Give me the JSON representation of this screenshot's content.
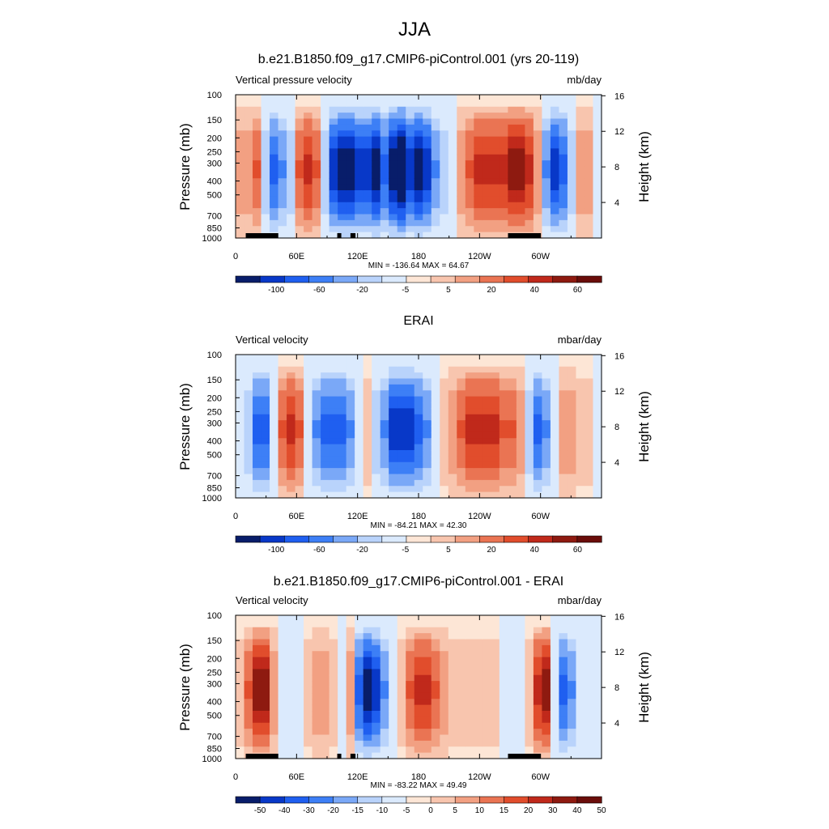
{
  "figure": {
    "season": "JJA"
  },
  "colors": {
    "div12": [
      "#081d6a",
      "#0838c8",
      "#1f5ff0",
      "#3d7ff6",
      "#7aa8f7",
      "#b9d3fb",
      "#dbeafd",
      "#fde6d6",
      "#f8c5ae",
      "#f2a082",
      "#ea7453",
      "#e14d2c",
      "#c0291b",
      "#8e1a10",
      "#6a0d0a"
    ],
    "land": "#000000"
  },
  "chart_data": [
    {
      "type": "heatmap",
      "title": "b.e21.B1850.f09_g17.CMIP6-piControl.001 (yrs 20-119)",
      "left_label": "Vertical pressure velocity",
      "right_label": "mb/day",
      "ylabel": "Pressure (mb)",
      "ylabel_right": "Height (km)",
      "x_ticks": [
        "0",
        "60E",
        "120E",
        "180",
        "120W",
        "60W"
      ],
      "y_ticks": [
        "100",
        "150",
        "200",
        "250",
        "300",
        "400",
        "500",
        "700",
        "850",
        "1000"
      ],
      "y_right_ticks": [
        "16",
        "12",
        "8",
        "4"
      ],
      "stats": "MIN = -136.64  MAX =  64.67",
      "min": -136.64,
      "max": 64.67,
      "colorbar_labels": [
        "-100",
        "-60",
        "-20",
        "-5",
        "5",
        "20",
        "40",
        "60"
      ],
      "profile": [
        2,
        2,
        3,
        -2,
        -4,
        -3,
        -2,
        3,
        4,
        3,
        -2,
        -5,
        -6,
        -6,
        -5,
        -5,
        -6,
        -4,
        -6,
        -7,
        -5,
        -6,
        -5,
        -3,
        -2,
        -1,
        2,
        3,
        4,
        4,
        4,
        4,
        5,
        5,
        4,
        2,
        -3,
        -5,
        -4,
        -2,
        2,
        2,
        -1
      ],
      "land_spans": [
        [
          10,
          42
        ],
        [
          100,
          104
        ],
        [
          113,
          118
        ],
        [
          268,
          300
        ]
      ]
    },
    {
      "type": "heatmap",
      "title": "ERAI",
      "left_label": "Vertical velocity",
      "right_label": "mbar/day",
      "ylabel": "Pressure (mb)",
      "ylabel_right": "Height (km)",
      "x_ticks": [
        "0",
        "60E",
        "120E",
        "180",
        "120W",
        "60W"
      ],
      "y_ticks": [
        "100",
        "150",
        "200",
        "250",
        "300",
        "400",
        "500",
        "700",
        "850",
        "1000"
      ],
      "y_right_ticks": [
        "16",
        "12",
        "8",
        "4"
      ],
      "stats": "MIN = -84.21  MAX =  42.30",
      "min": -84.21,
      "max": 42.3,
      "colorbar_labels": [
        "-100",
        "-60",
        "-20",
        "-5",
        "5",
        "20",
        "40",
        "60"
      ],
      "profile": [
        -1,
        -2,
        -4,
        -4,
        -1,
        3,
        4,
        3,
        -1,
        -3,
        -4,
        -4,
        -4,
        -3,
        -1,
        1,
        -2,
        -3,
        -5,
        -5,
        -5,
        -4,
        -3,
        -1,
        1,
        2,
        3,
        4,
        4,
        4,
        4,
        3,
        3,
        2,
        -2,
        -4,
        -3,
        -1,
        2,
        2,
        1,
        1,
        -1
      ],
      "land_spans": []
    },
    {
      "type": "heatmap",
      "title": "b.e21.B1850.f09_g17.CMIP6-piControl.001 - ERAI",
      "left_label": "Vertical velocity",
      "right_label": "mbar/day",
      "ylabel": "Pressure (mb)",
      "ylabel_right": "Height (km)",
      "x_ticks": [
        "0",
        "60E",
        "120E",
        "180",
        "120W",
        "60W"
      ],
      "y_ticks": [
        "100",
        "150",
        "200",
        "250",
        "300",
        "400",
        "500",
        "700",
        "850",
        "1000"
      ],
      "y_right_ticks": [
        "16",
        "12",
        "8",
        "4"
      ],
      "stats": "MIN = -83.22  MAX =  49.49",
      "min": -83.22,
      "max": 49.49,
      "colorbar_labels": [
        "-50",
        "-40",
        "-30",
        "-20",
        "-15",
        "-10",
        "-5",
        "0",
        "5",
        "10",
        "15",
        "20",
        "30",
        "40",
        "50"
      ],
      "profile": [
        1,
        3,
        5,
        5,
        2,
        -1,
        -1,
        -1,
        1,
        2,
        2,
        1,
        -1,
        2,
        -4,
        -6,
        -5,
        -3,
        -1,
        1,
        3,
        4,
        4,
        3,
        2,
        1,
        1,
        1,
        1,
        1,
        1,
        -1,
        -1,
        -1,
        1,
        4,
        5,
        -1,
        -4,
        -3,
        -1,
        -1,
        -1
      ],
      "land_spans": [
        [
          10,
          42
        ],
        [
          100,
          104
        ],
        [
          113,
          118
        ],
        [
          268,
          300
        ]
      ]
    }
  ]
}
